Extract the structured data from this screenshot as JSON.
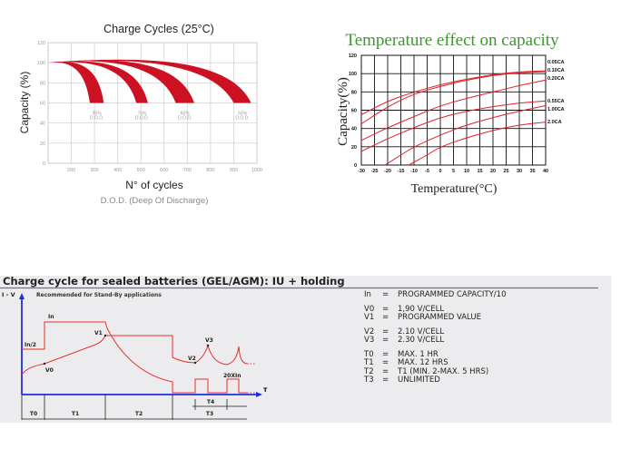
{
  "chart_data": [
    {
      "type": "area",
      "title": "Charge Cycles (25°C)",
      "xlabel": "N° of cycles",
      "subtitle": "D.O.D. (Deep Of Discharge)",
      "ylabel": "Capacity (%)",
      "xlim": [
        100,
        1000
      ],
      "ylim": [
        0,
        120
      ],
      "xticks": [
        200,
        300,
        400,
        500,
        600,
        700,
        800,
        900,
        1000
      ],
      "yticks": [
        0,
        20,
        40,
        60,
        80,
        100,
        120
      ],
      "grid": true,
      "series": [
        {
          "name": "95% D.O.D.",
          "label1": "95%",
          "label2": "D.O.D.",
          "start": [
            100,
            100
          ],
          "peak": 101,
          "end_min": 280,
          "end_max": 340,
          "end_y": 60
        },
        {
          "name": "75% D.O.D.",
          "label1": "75%",
          "label2": "D.O.D.",
          "start": [
            100,
            100
          ],
          "peak": 102,
          "end_min": 480,
          "end_max": 530,
          "end_y": 60
        },
        {
          "name": "60% D.O.D.",
          "label1": "60%",
          "label2": "D.O.D.",
          "start": [
            100,
            100
          ],
          "peak": 104,
          "end_min": 650,
          "end_max": 730,
          "end_y": 60
        },
        {
          "name": "50% D.O.D.",
          "label1": "50%",
          "label2": "D.O.D.",
          "start": [
            100,
            100
          ],
          "peak": 105,
          "end_min": 900,
          "end_max": 975,
          "end_y": 60
        }
      ],
      "color": "#cc1122"
    },
    {
      "type": "line",
      "title": "Temperature effect on capacity",
      "xlabel": "Temperature(°C)",
      "ylabel": "Capacity(%)",
      "xlim": [
        -30,
        40
      ],
      "ylim": [
        0,
        120
      ],
      "xticks": [
        -30,
        -25,
        -20,
        -15,
        -10,
        -5,
        0,
        5,
        10,
        15,
        20,
        25,
        30,
        35,
        40
      ],
      "yticks": [
        0,
        20,
        40,
        60,
        80,
        100,
        120
      ],
      "grid": true,
      "legend": "right",
      "title_color": "#3a9a2a",
      "color": "#e0202a",
      "series": [
        {
          "name": "0.05CA",
          "points": [
            [
              -30,
              55
            ],
            [
              -20,
              70
            ],
            [
              -10,
              80
            ],
            [
              0,
              88
            ],
            [
              10,
              94
            ],
            [
              20,
              99
            ],
            [
              30,
              102
            ],
            [
              40,
              103
            ]
          ]
        },
        {
          "name": "0.10CA",
          "points": [
            [
              -30,
              45
            ],
            [
              -20,
              64
            ],
            [
              -10,
              78
            ],
            [
              0,
              86
            ],
            [
              10,
              93
            ],
            [
              20,
              98
            ],
            [
              30,
              101
            ],
            [
              40,
              102
            ]
          ]
        },
        {
          "name": "0.20CA",
          "points": [
            [
              -30,
              27
            ],
            [
              -20,
              41
            ],
            [
              -10,
              53
            ],
            [
              0,
              65
            ],
            [
              10,
              73
            ],
            [
              20,
              80
            ],
            [
              30,
              87
            ],
            [
              40,
              93
            ]
          ]
        },
        {
          "name": "0.55CA",
          "points": [
            [
              -30,
              15
            ],
            [
              -20,
              29
            ],
            [
              -10,
              41
            ],
            [
              0,
              52
            ],
            [
              10,
              59
            ],
            [
              20,
              64
            ],
            [
              30,
              68
            ],
            [
              40,
              70
            ]
          ]
        },
        {
          "name": "1.00CA",
          "points": [
            [
              -21,
              0
            ],
            [
              -15,
              11
            ],
            [
              -10,
              20
            ],
            [
              0,
              33
            ],
            [
              10,
              44
            ],
            [
              20,
              52
            ],
            [
              30,
              59
            ],
            [
              40,
              65
            ]
          ]
        },
        {
          "name": "2.0CA",
          "points": [
            [
              -12,
              0
            ],
            [
              -5,
              11
            ],
            [
              0,
              20
            ],
            [
              10,
              30
            ],
            [
              20,
              38
            ],
            [
              30,
              44
            ],
            [
              40,
              47
            ]
          ]
        }
      ]
    }
  ],
  "diagram": {
    "title": "Charge cycle for sealed batteries (GEL/AGM): IU + holding",
    "y_axis": "I - V",
    "x_axis": "T",
    "subtitle": "Recommended for Stand-By applications",
    "labels": {
      "in": "In",
      "in2": "In/2",
      "v0": "V0",
      "v1": "V1",
      "v2": "V2",
      "v3": "V3",
      "pulse": "20XIn"
    },
    "periods": [
      "T0",
      "T1",
      "T2",
      "T3",
      "T4"
    ],
    "legend": [
      {
        "k": "In",
        "v": "PROGRAMMED CAPACITY/10"
      },
      {
        "k": "V0",
        "v": "1,90 V/CELL"
      },
      {
        "k": "V1",
        "v": "PROGRAMMED VALUE"
      },
      {
        "k": "V2",
        "v": "2.10 V/CELL"
      },
      {
        "k": "V3",
        "v": "2.30 V/CELL"
      },
      {
        "k": "T0",
        "v": "MAX. 1 HR"
      },
      {
        "k": "T1",
        "v": "MAX. 12 HRS"
      },
      {
        "k": "T2",
        "v": "T1 (MIN. 2-MAX. 5 HRS)"
      },
      {
        "k": "T3",
        "v": "UNLIMITED"
      }
    ],
    "eq": "="
  }
}
